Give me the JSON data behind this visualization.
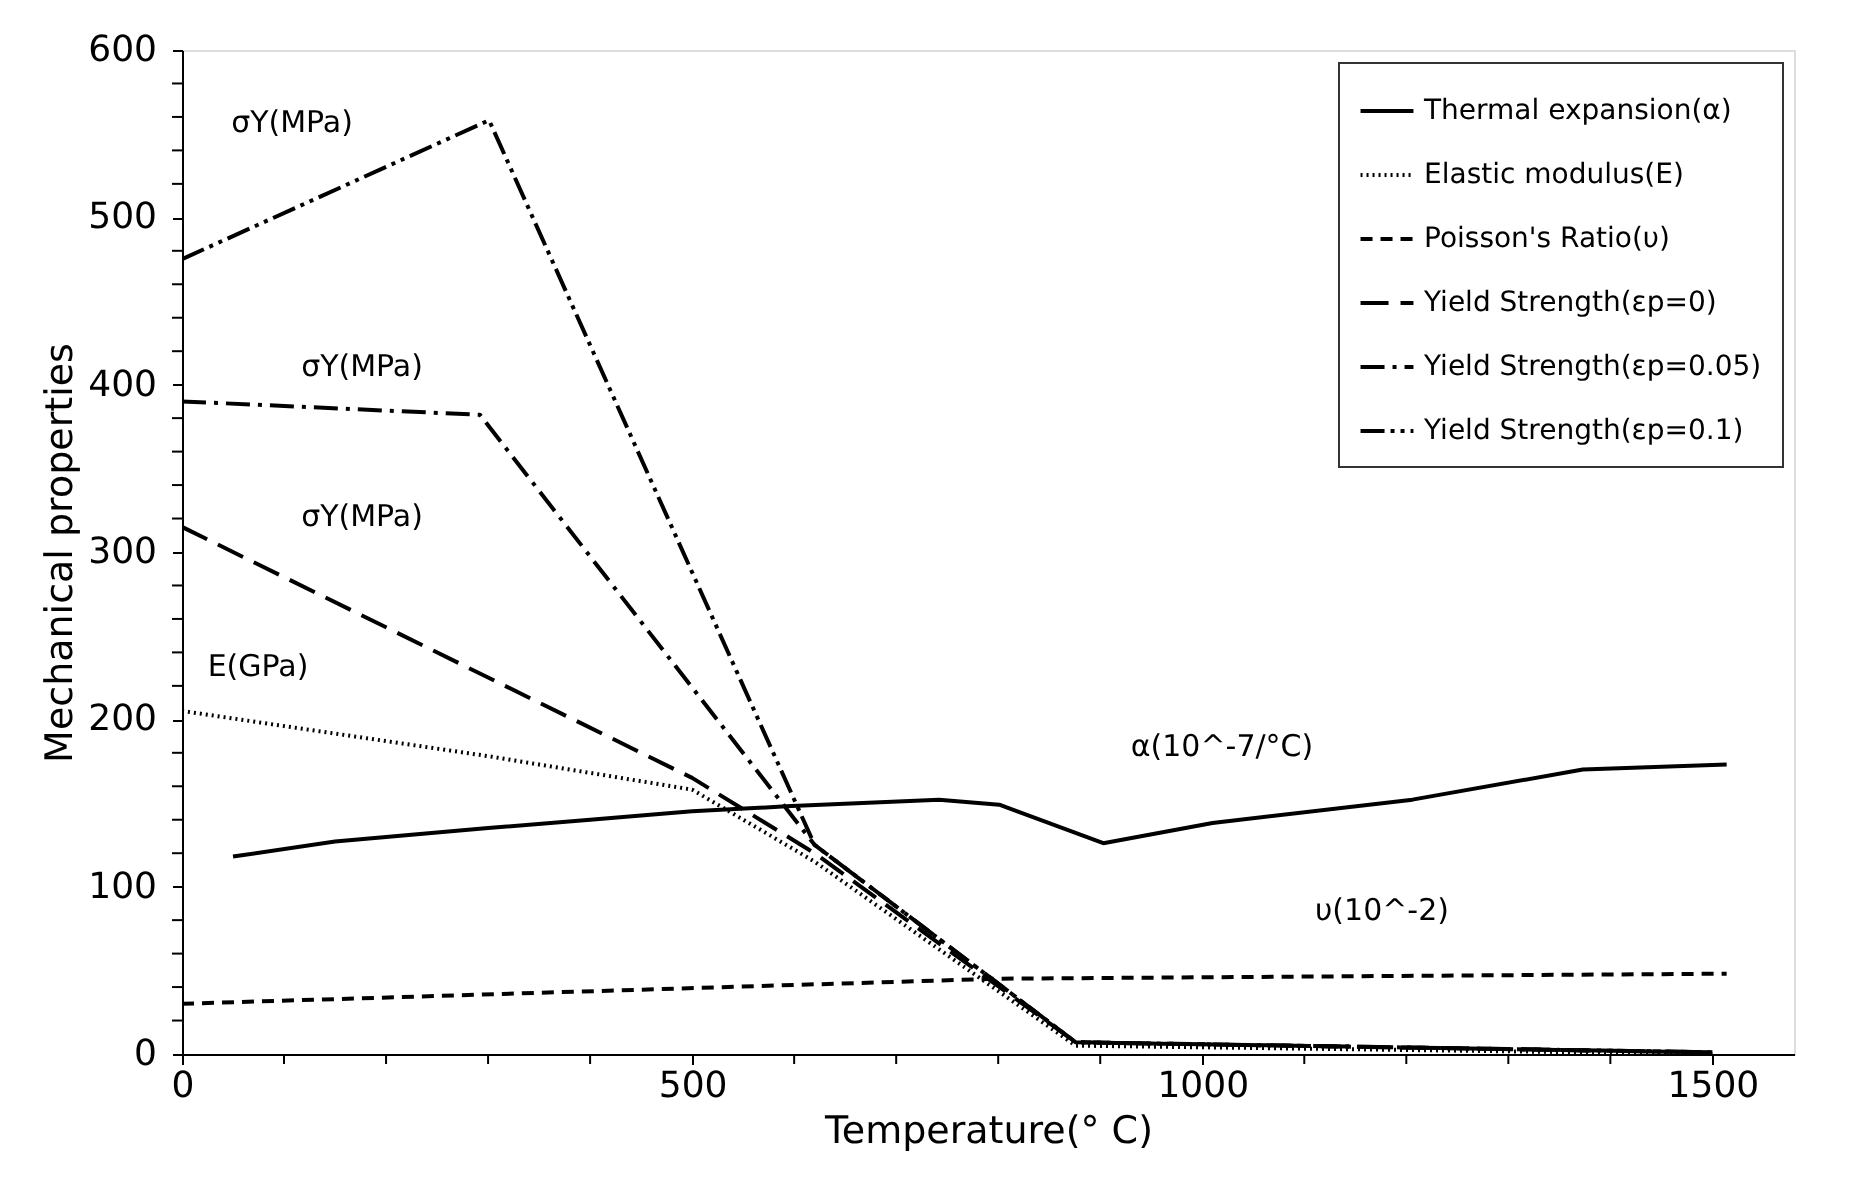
{
  "chart_data": {
    "type": "line",
    "xlabel": "Temperature(° C)",
    "ylabel": "Mechanical properties",
    "xlim": [
      0,
      1580
    ],
    "ylim": [
      0,
      600
    ],
    "xticks": [
      0,
      {
        "value": 100,
        "label": null
      },
      {
        "value": 200,
        "label": null
      },
      {
        "value": 300,
        "label": null
      },
      {
        "value": 400,
        "label": null
      },
      500,
      {
        "value": 600,
        "label": null
      },
      {
        "value": 700,
        "label": null
      },
      {
        "value": 800,
        "label": null
      },
      {
        "value": 900,
        "label": null
      },
      1000,
      {
        "value": 1100,
        "label": null
      },
      {
        "value": 1200,
        "label": null
      },
      {
        "value": 1300,
        "label": null
      },
      {
        "value": 1400,
        "label": null
      },
      1500
    ],
    "yticks": [
      0,
      {
        "value": 20,
        "label": null
      },
      {
        "value": 40,
        "label": null
      },
      {
        "value": 60,
        "label": null
      },
      {
        "value": 80,
        "label": null
      },
      100,
      {
        "value": 120,
        "label": null
      },
      {
        "value": 140,
        "label": null
      },
      {
        "value": 160,
        "label": null
      },
      {
        "value": 180,
        "label": null
      },
      200,
      {
        "value": 220,
        "label": null
      },
      {
        "value": 240,
        "label": null
      },
      {
        "value": 260,
        "label": null
      },
      {
        "value": 280,
        "label": null
      },
      300,
      {
        "value": 320,
        "label": null
      },
      {
        "value": 340,
        "label": null
      },
      {
        "value": 360,
        "label": null
      },
      {
        "value": 380,
        "label": null
      },
      400,
      {
        "value": 420,
        "label": null
      },
      {
        "value": 440,
        "label": null
      },
      {
        "value": 460,
        "label": null
      },
      {
        "value": 480,
        "label": null
      },
      500,
      {
        "value": 520,
        "label": null
      },
      {
        "value": 540,
        "label": null
      },
      {
        "value": 560,
        "label": null
      },
      {
        "value": 580,
        "label": null
      },
      600
    ],
    "grid": false,
    "legend": "top right",
    "marker": "none",
    "series": [
      {
        "name": "Thermal expansion(α)",
        "color": "#000000",
        "line_style": "solid",
        "x": [
          50,
          150,
          300,
          400,
          500,
          592,
          742,
          801,
          903,
          1010,
          1206,
          1373,
          1514
        ],
        "values": [
          118,
          127,
          135,
          140,
          145,
          148,
          152,
          149,
          126,
          138,
          152,
          170,
          173
        ]
      },
      {
        "name": "Elastic modulus(E)",
        "color": "#000000",
        "line_style": "dotted",
        "x": [
          0,
          300,
          500,
          620,
          876,
          1500
        ],
        "values": [
          205,
          178,
          158,
          115,
          5,
          0
        ]
      },
      {
        "name": "Poisson's Ratio(υ)",
        "color": "#000000",
        "line_style": "dashed",
        "x": [
          0,
          800,
          1514
        ],
        "values": [
          30,
          45,
          48
        ]
      },
      {
        "name": "Yield Strength(εp=0)",
        "color": "#000000",
        "line_style": "longdash",
        "x": [
          0,
          500,
          620,
          876,
          1500
        ],
        "values": [
          315,
          165,
          120,
          7,
          1
        ]
      },
      {
        "name": "Yield Strength(εp=0.05)",
        "color": "#000000",
        "line_style": "dashdot",
        "x": [
          0,
          292,
          620,
          876,
          1500
        ],
        "values": [
          390,
          382,
          125,
          7,
          1
        ]
      },
      {
        "name": "Yield Strength(εp=0.1)",
        "color": "#000000",
        "line_style": "dashdotdot",
        "x": [
          0,
          301,
          620,
          876,
          1500
        ],
        "values": [
          475,
          558,
          125,
          7,
          1
        ]
      }
    ],
    "annotations": [
      "σY(MPa)",
      "σY(MPa)",
      "σY(MPa)",
      "E(GPa)",
      "α(10^-7/°C)",
      "υ(10^-2)"
    ]
  }
}
